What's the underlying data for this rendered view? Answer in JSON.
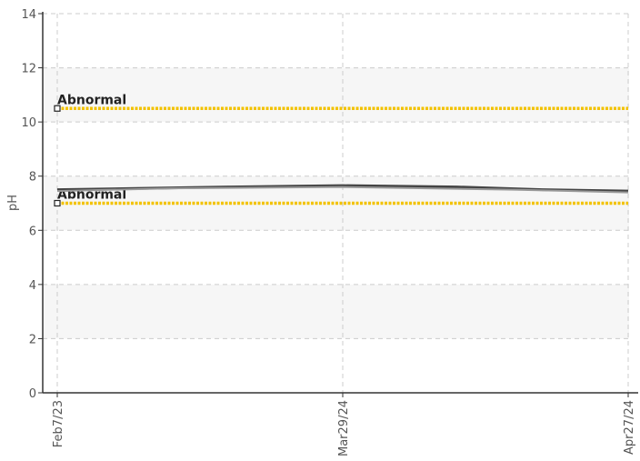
{
  "chart_data": {
    "type": "line",
    "ylabel": "pH",
    "ylim": [
      0,
      14
    ],
    "yticks": [
      "0",
      "2",
      "4",
      "6",
      "8",
      "10",
      "12",
      "14"
    ],
    "x_categories": [
      "Feb7/23",
      "Mar29/24",
      "Apr27/24"
    ],
    "grid": true,
    "series": [
      {
        "color": "#444444",
        "x": [
          0,
          0.15,
          0.3,
          0.5,
          0.7,
          0.85,
          1.0
        ],
        "values": [
          7.5,
          7.55,
          7.6,
          7.65,
          7.6,
          7.5,
          7.45
        ]
      },
      {
        "color": "#999999",
        "x": [
          0,
          0.2,
          0.5,
          0.8,
          1.0
        ],
        "values": [
          7.45,
          7.55,
          7.6,
          7.5,
          7.4
        ]
      }
    ],
    "reference_lines": [
      {
        "label": "Abnormal",
        "value": 10.5,
        "color": "#f2c200"
      },
      {
        "label": "Abnormal",
        "value": 7.0,
        "color": "#f2c200"
      }
    ]
  }
}
